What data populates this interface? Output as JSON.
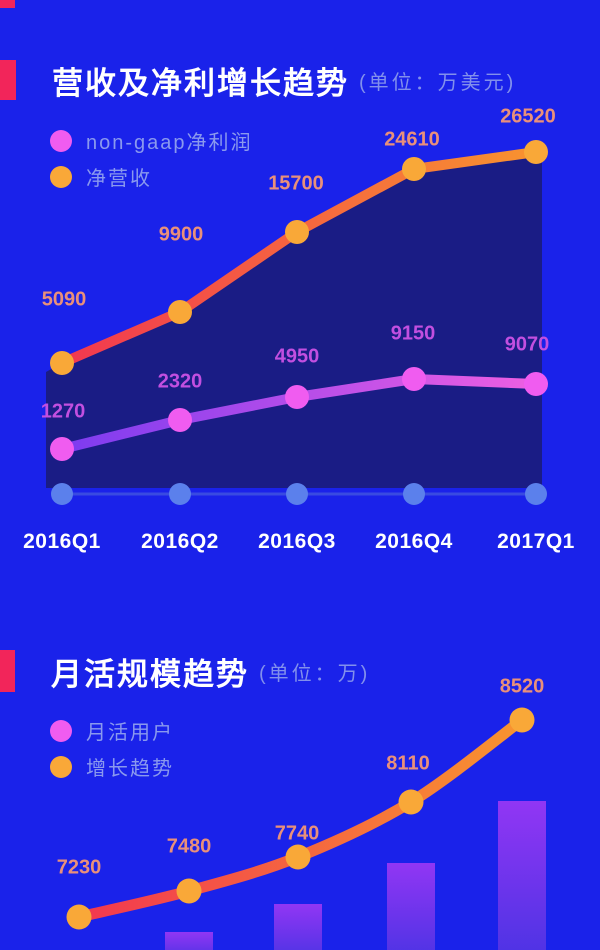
{
  "page": {
    "background_color": "#1A22EA",
    "accent_color": "#F2255A"
  },
  "sections": [
    {
      "title": "营收及净利增长趋势",
      "unit": "(单位：万美元)",
      "legend": [
        {
          "label": "non-gaap净利润",
          "color": "#F05CF0"
        },
        {
          "label": "净营收",
          "color": "#F9A838"
        }
      ]
    },
    {
      "title": "月活规模趋势",
      "unit": "(单位：万)",
      "legend": [
        {
          "label": "月活用户",
          "color": "#F05CF0"
        },
        {
          "label": "增长趋势",
          "color": "#F9A838"
        }
      ]
    }
  ],
  "chart_data": [
    {
      "type": "line",
      "title": "营收及净利增长趋势",
      "unit": "万美元",
      "categories": [
        "2016Q1",
        "2016Q2",
        "2016Q3",
        "2016Q4",
        "2017Q1"
      ],
      "series": [
        {
          "name": "净营收",
          "values": [
            5090,
            9900,
            15700,
            24610,
            26520
          ],
          "line_gradient": [
            "#F23750",
            "#F8932F"
          ],
          "point_color": "#F9A838",
          "label_color": "#E9907A"
        },
        {
          "name": "non-gaap净利润",
          "values": [
            1270,
            2320,
            4950,
            9150,
            9070
          ],
          "line_gradient": [
            "#7C3BF0",
            "#EE5FE2"
          ],
          "point_color": "#F05CF0",
          "label_color": "#C24FE0"
        }
      ],
      "area_fill_under_top_series": true,
      "area_fill_color": "#1A1C85",
      "axis_dot_color": "#5B80EC",
      "grid": false,
      "legend_position": "top-left",
      "data_labels": "above-points"
    },
    {
      "type": "line+bar",
      "title": "月活规模趋势",
      "unit": "万",
      "categories_visible": false,
      "series": [
        {
          "name": "增长趋势",
          "type": "line",
          "values": [
            7230,
            7480,
            7740,
            8110,
            8520
          ],
          "line_gradient": [
            "#F23750",
            "#F8942F"
          ],
          "point_color": "#F9A838",
          "label_color": "#E9907A"
        },
        {
          "name": "月活用户",
          "type": "bar",
          "bar_gradient": [
            "#9136F4",
            "#4C33E4"
          ],
          "visible_bar_count": 4,
          "note": "bars extend below the cropped image edge; no bar value labels visible"
        }
      ],
      "grid": false,
      "legend_position": "top-left",
      "data_labels": "above-points"
    }
  ]
}
